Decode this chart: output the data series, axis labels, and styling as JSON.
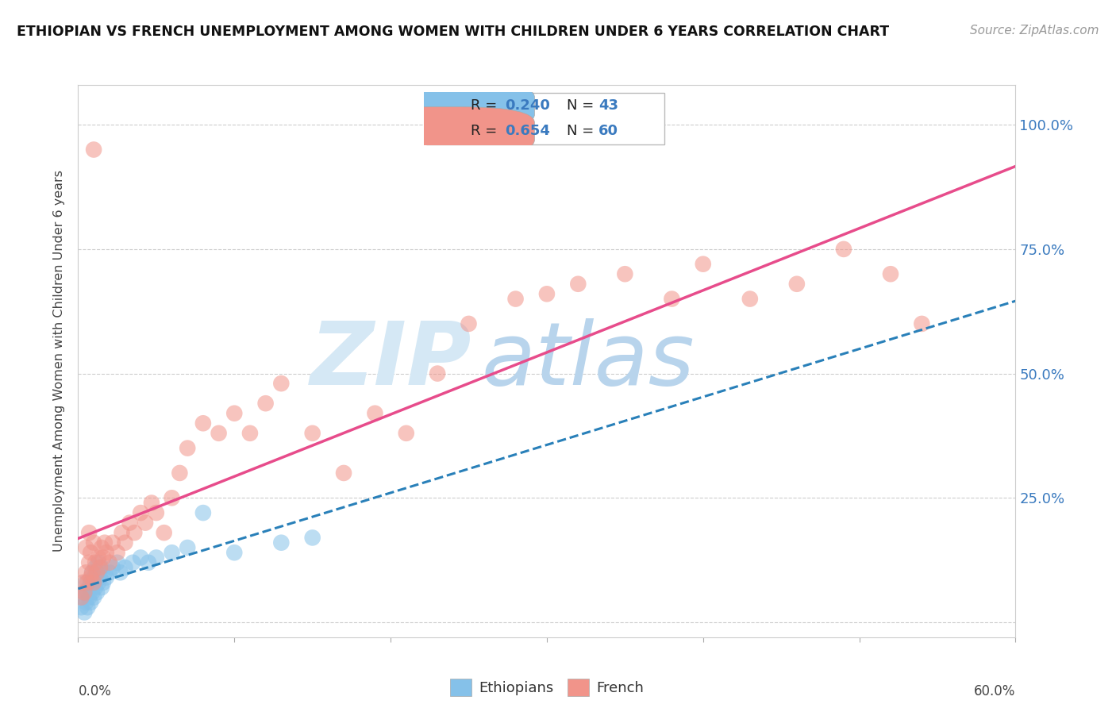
{
  "title": "ETHIOPIAN VS FRENCH UNEMPLOYMENT AMONG WOMEN WITH CHILDREN UNDER 6 YEARS CORRELATION CHART",
  "source": "Source: ZipAtlas.com",
  "ylabel": "Unemployment Among Women with Children Under 6 years",
  "xlim": [
    0.0,
    0.6
  ],
  "ylim": [
    -0.03,
    1.08
  ],
  "yticks": [
    0.0,
    0.25,
    0.5,
    0.75,
    1.0
  ],
  "legend_r_ethiopian": "0.240",
  "legend_n_ethiopian": "43",
  "legend_r_french": "0.654",
  "legend_n_french": "60",
  "ethiopian_color": "#85c1e9",
  "french_color": "#f1948a",
  "regression_ethiopian_color": "#2980b9",
  "regression_french_color": "#e74c8b",
  "watermark_zip_color": "#d5e8f5",
  "watermark_atlas_color": "#b8d4ec",
  "eth_x": [
    0.002,
    0.003,
    0.004,
    0.004,
    0.005,
    0.005,
    0.006,
    0.006,
    0.007,
    0.007,
    0.008,
    0.008,
    0.009,
    0.009,
    0.01,
    0.01,
    0.011,
    0.011,
    0.012,
    0.012,
    0.013,
    0.013,
    0.014,
    0.015,
    0.015,
    0.016,
    0.017,
    0.018,
    0.02,
    0.022,
    0.025,
    0.027,
    0.03,
    0.035,
    0.04,
    0.045,
    0.05,
    0.06,
    0.07,
    0.08,
    0.1,
    0.13,
    0.15
  ],
  "eth_y": [
    0.03,
    0.05,
    0.02,
    0.06,
    0.04,
    0.08,
    0.03,
    0.06,
    0.05,
    0.07,
    0.04,
    0.08,
    0.06,
    0.1,
    0.05,
    0.09,
    0.07,
    0.11,
    0.06,
    0.1,
    0.08,
    0.12,
    0.09,
    0.07,
    0.11,
    0.08,
    0.1,
    0.09,
    0.1,
    0.11,
    0.12,
    0.1,
    0.11,
    0.12,
    0.13,
    0.12,
    0.13,
    0.14,
    0.15,
    0.22,
    0.14,
    0.16,
    0.17
  ],
  "fr_x": [
    0.002,
    0.003,
    0.004,
    0.005,
    0.005,
    0.006,
    0.007,
    0.007,
    0.008,
    0.008,
    0.009,
    0.01,
    0.01,
    0.011,
    0.012,
    0.013,
    0.014,
    0.015,
    0.016,
    0.017,
    0.018,
    0.02,
    0.022,
    0.025,
    0.028,
    0.03,
    0.033,
    0.036,
    0.04,
    0.043,
    0.047,
    0.05,
    0.055,
    0.06,
    0.065,
    0.07,
    0.08,
    0.09,
    0.1,
    0.11,
    0.12,
    0.13,
    0.15,
    0.17,
    0.19,
    0.21,
    0.23,
    0.25,
    0.28,
    0.3,
    0.32,
    0.35,
    0.38,
    0.4,
    0.43,
    0.46,
    0.49,
    0.52,
    0.54,
    0.01
  ],
  "fr_y": [
    0.05,
    0.08,
    0.06,
    0.1,
    0.15,
    0.08,
    0.12,
    0.18,
    0.09,
    0.14,
    0.1,
    0.08,
    0.16,
    0.12,
    0.1,
    0.13,
    0.11,
    0.15,
    0.13,
    0.16,
    0.14,
    0.12,
    0.16,
    0.14,
    0.18,
    0.16,
    0.2,
    0.18,
    0.22,
    0.2,
    0.24,
    0.22,
    0.18,
    0.25,
    0.3,
    0.35,
    0.4,
    0.38,
    0.42,
    0.38,
    0.44,
    0.48,
    0.38,
    0.3,
    0.42,
    0.38,
    0.5,
    0.6,
    0.65,
    0.66,
    0.68,
    0.7,
    0.65,
    0.72,
    0.65,
    0.68,
    0.75,
    0.7,
    0.6,
    0.95
  ]
}
